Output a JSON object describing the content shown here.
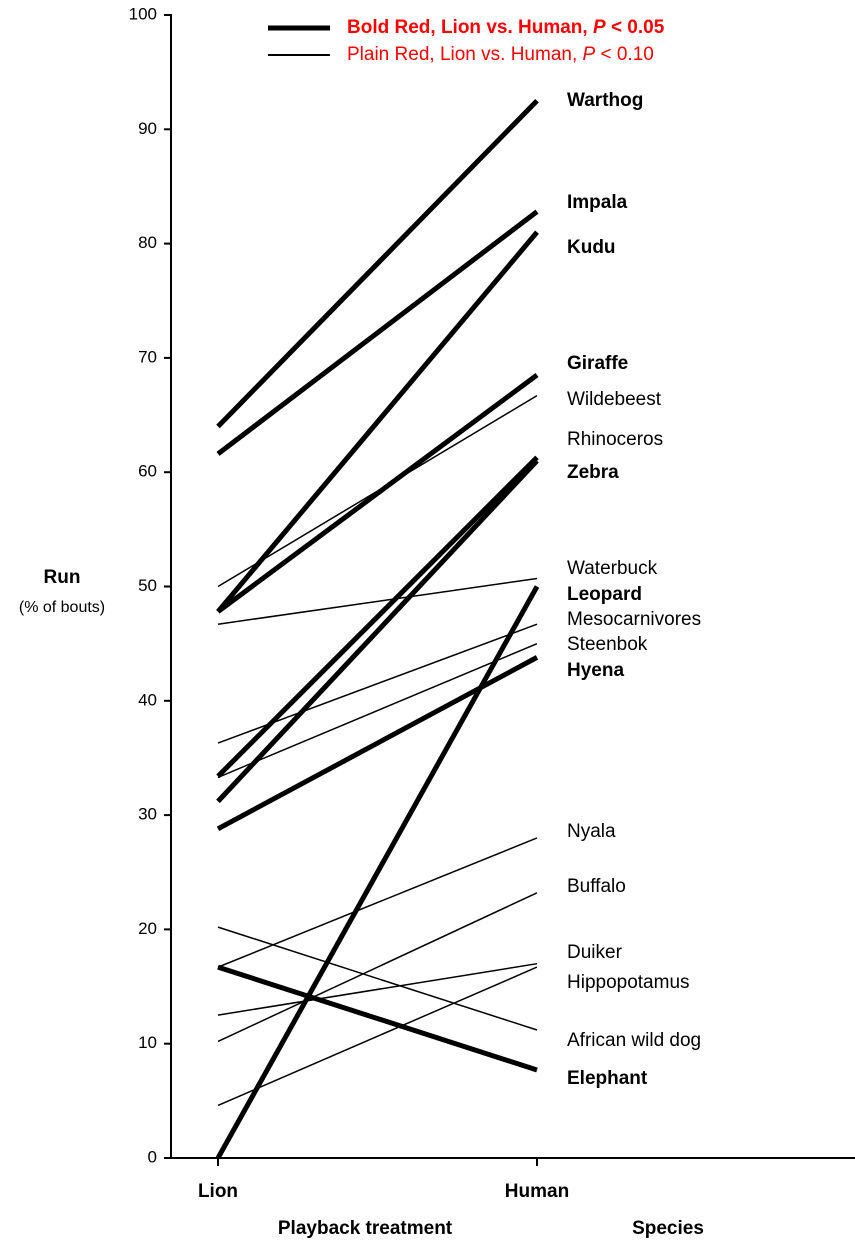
{
  "chart_data": {
    "type": "slope",
    "categories": [
      "Lion",
      "Human"
    ],
    "x_label": "Playback treatment",
    "label_column_title": "Species",
    "y_label": "Run",
    "y_sublabel": "(% of bouts)",
    "ylim": [
      0,
      100
    ],
    "yticks": [
      0,
      10,
      20,
      30,
      40,
      50,
      60,
      70,
      80,
      90,
      100
    ],
    "legend": [
      {
        "pre": "Bold Red, Lion vs. Human,",
        "italic": "P",
        "post": "< 0.05",
        "color": "#ff0000",
        "bold": true,
        "line_width": 5
      },
      {
        "pre": "Plain Red, Lion vs. Human,",
        "italic": "P",
        "post": "< 0.10",
        "color": "#ff0000",
        "bold": false,
        "line_width": 2
      }
    ],
    "series": [
      {
        "name": "Warthog",
        "color": "#ff0000",
        "bold": true,
        "line_width": 5,
        "values": [
          64,
          92.5
        ]
      },
      {
        "name": "Impala",
        "color": "#ff0000",
        "bold": true,
        "line_width": 5,
        "values": [
          61.6,
          82.8
        ]
      },
      {
        "name": "Kudu",
        "color": "#ff0000",
        "bold": true,
        "line_width": 5,
        "values": [
          47.8,
          81
        ]
      },
      {
        "name": "Giraffe",
        "color": "#ff0000",
        "bold": true,
        "line_width": 5,
        "values": [
          47.8,
          68.5
        ]
      },
      {
        "name": "Wildebeest",
        "color": "#000000",
        "bold": false,
        "line_width": 1.5,
        "values": [
          50,
          66.7
        ]
      },
      {
        "name": "Rhinoceros",
        "color": "#ff0000",
        "bold": false,
        "line_width": 5,
        "values": [
          31.2,
          61
        ]
      },
      {
        "name": "Zebra",
        "color": "#ff0000",
        "bold": true,
        "line_width": 5,
        "values": [
          33.4,
          61.3
        ]
      },
      {
        "name": "Waterbuck",
        "color": "#000000",
        "bold": false,
        "line_width": 1.5,
        "values": [
          46.7,
          50.7
        ]
      },
      {
        "name": "Leopard",
        "color": "#ff0000",
        "bold": true,
        "line_width": 5,
        "values": [
          0,
          50
        ]
      },
      {
        "name": "Mesocarnivores",
        "color": "#000000",
        "bold": false,
        "line_width": 1.5,
        "values": [
          36.3,
          46.7
        ]
      },
      {
        "name": "Steenbok",
        "color": "#000000",
        "bold": false,
        "line_width": 1.5,
        "values": [
          33.3,
          45
        ]
      },
      {
        "name": "Hyena",
        "color": "#ff0000",
        "bold": true,
        "line_width": 5,
        "values": [
          28.8,
          43.8
        ]
      },
      {
        "name": "Nyala",
        "color": "#000000",
        "bold": false,
        "line_width": 1.5,
        "values": [
          16.7,
          28
        ]
      },
      {
        "name": "Buffalo",
        "color": "#000000",
        "bold": false,
        "line_width": 1.5,
        "values": [
          10.2,
          23.2
        ]
      },
      {
        "name": "Duiker",
        "color": "#000000",
        "bold": false,
        "line_width": 1.5,
        "values": [
          12.5,
          17
        ]
      },
      {
        "name": "Hippopotamus",
        "color": "#000000",
        "bold": false,
        "line_width": 1.5,
        "values": [
          4.6,
          16.7
        ]
      },
      {
        "name": "African wild dog",
        "color": "#000000",
        "bold": false,
        "line_width": 1.5,
        "values": [
          20.2,
          11.2
        ]
      },
      {
        "name": "Elephant",
        "color": "#ff0000",
        "bold": true,
        "line_width": 5,
        "values": [
          16.7,
          7.7
        ]
      }
    ]
  }
}
